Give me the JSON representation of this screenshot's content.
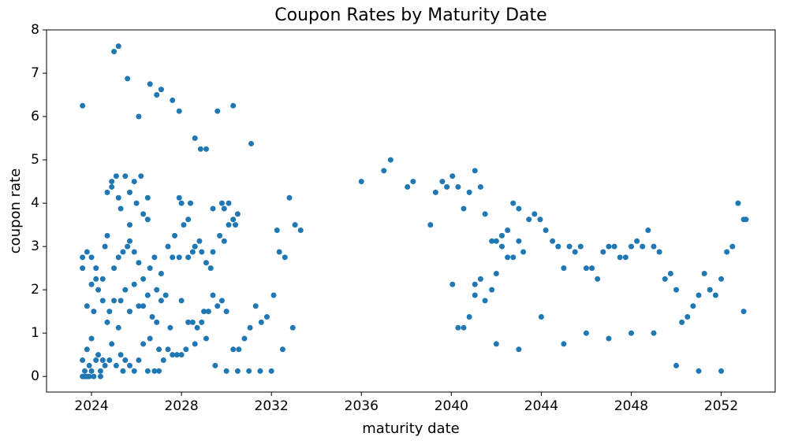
{
  "chart_data": {
    "type": "scatter",
    "title": "Coupon Rates by Maturity Date",
    "x_label": "maturity date",
    "y_label": "coupon rate",
    "color": "#1f77b4",
    "xlim": [
      2022.0,
      2054.4
    ],
    "ylim": [
      -0.36,
      8
    ],
    "xticks": [
      2024,
      2028,
      2032,
      2036,
      2040,
      2044,
      2048,
      2052
    ],
    "yticks": [
      0,
      1,
      2,
      3,
      4,
      5,
      6,
      7,
      8
    ],
    "x": [
      2036.0,
      2037.0,
      2037.3,
      2038.05,
      2038.3,
      2039.07,
      2039.3,
      2039.6,
      2039.8,
      2040.05,
      2040.05,
      2040.3,
      2040.3,
      2040.55,
      2040.55,
      2040.8,
      2040.8,
      2041.05,
      2041.05,
      2041.05,
      2041.3,
      2041.3,
      2041.5,
      2041.5,
      2041.8,
      2041.8,
      2042.0,
      2042.0,
      2042.0,
      2042.25,
      2042.25,
      2042.5,
      2042.5,
      2042.75,
      2042.75,
      2043.0,
      2043.0,
      2043.0,
      2043.2,
      2043.45,
      2043.7,
      2043.95,
      2044.0,
      2044.2,
      2044.5,
      2044.75,
      2045.0,
      2045.0,
      2045.25,
      2045.5,
      2045.75,
      2046.0,
      2046.0,
      2046.25,
      2046.5,
      2046.75,
      2047.0,
      2047.0,
      2047.25,
      2047.5,
      2047.75,
      2048.0,
      2048.0,
      2048.25,
      2048.5,
      2048.75,
      2049.0,
      2049.0,
      2049.25,
      2049.5,
      2049.75,
      2050.0,
      2050.0,
      2050.25,
      2050.5,
      2050.75,
      2051.0,
      2051.0,
      2051.25,
      2051.5,
      2051.75,
      2052.0,
      2052.0,
      2052.25,
      2052.5,
      2052.75,
      2053.0,
      2053.1,
      2053.0,
      2028.6,
      2028.85,
      2029.1,
      2029.6,
      2030.3,
      2031.1,
      2032.8,
      2033.05,
      2033.3,
      2032.25,
      2032.35,
      2032.6,
      2032.1,
      2031.8,
      2031.55,
      2031.3,
      2031.05,
      2030.8,
      2030.55,
      2030.3,
      2032.95,
      2032.5,
      2032.0,
      2031.5,
      2031.0,
      2030.5,
      2030.0,
      2029.5,
      2030.0,
      2029.8,
      2029.6,
      2029.8,
      2029.9,
      2030.1,
      2030.3,
      2030.5,
      2030.1,
      2029.4,
      2029.7,
      2029.9,
      2030.4,
      2028.3,
      2028.1,
      2028.0,
      2027.9,
      2028.4,
      2028.6,
      2028.8,
      2029.3,
      2029.4,
      2029.1,
      2028.9,
      2028.5,
      2028.3,
      2027.9,
      2027.6,
      2028.0,
      2028.3,
      2028.5,
      2028.7,
      2028.9,
      2029.0,
      2029.2,
      2029.4,
      2029.1,
      2028.6,
      2028.2,
      2028.0,
      2027.8,
      2027.6,
      2027.4,
      2027.2,
      2027.0,
      2023.6,
      2025.0,
      2025.2,
      2025.6,
      2026.1,
      2026.6,
      2026.9,
      2027.1,
      2027.6,
      2027.9,
      2024.7,
      2024.9,
      2025.1,
      2025.3,
      2025.5,
      2025.7,
      2025.9,
      2026.2,
      2026.3,
      2026.5,
      2026.0,
      2025.2,
      2024.9,
      2023.6,
      2023.6,
      2023.8,
      2024.0,
      2024.2,
      2024.5,
      2024.6,
      2024.7,
      2025.0,
      2025.2,
      2025.4,
      2025.6,
      2025.7,
      2025.9,
      2026.1,
      2026.3,
      2026.6,
      2026.8,
      2027.1,
      2027.4,
      2027.7,
      2025.7,
      2026.5,
      2026.9,
      2023.8,
      2024.0,
      2024.2,
      2024.3,
      2024.5,
      2024.7,
      2024.8,
      2025.0,
      2025.2,
      2025.3,
      2025.5,
      2025.7,
      2025.9,
      2026.1,
      2026.3,
      2026.5,
      2026.7,
      2026.9,
      2027.1,
      2027.3,
      2027.5,
      2024.1,
      2023.6,
      2023.7,
      2023.8,
      2023.9,
      2024.0,
      2024.1,
      2024.2,
      2024.3,
      2024.4,
      2024.5,
      2024.6,
      2024.8,
      2023.6,
      2023.7,
      2023.9,
      2024.0,
      2024.4,
      2024.9,
      2025.1,
      2025.3,
      2025.5,
      2025.7,
      2025.9,
      2026.1,
      2026.3,
      2026.5,
      2026.6,
      2026.8,
      2027.0,
      2025.4,
      2023.8
    ],
    "values": [
      4.5,
      4.75,
      5.0,
      4.375,
      4.5,
      3.5,
      4.25,
      4.5,
      4.375,
      4.625,
      2.125,
      4.375,
      1.125,
      1.125,
      3.875,
      4.25,
      1.375,
      4.75,
      2.125,
      1.875,
      2.25,
      4.375,
      3.75,
      1.75,
      3.125,
      2.0,
      3.125,
      2.375,
      0.75,
      3.25,
      3.0,
      3.375,
      2.75,
      4.0,
      2.75,
      3.875,
      3.125,
      0.625,
      2.875,
      3.625,
      3.75,
      3.625,
      1.375,
      3.375,
      3.125,
      3.0,
      2.5,
      0.75,
      3.0,
      2.875,
      3.0,
      2.5,
      1.0,
      2.5,
      2.25,
      2.875,
      3.0,
      0.875,
      3.0,
      2.75,
      2.75,
      3.0,
      1.0,
      3.125,
      3.0,
      3.375,
      3.0,
      1.0,
      2.875,
      2.25,
      2.375,
      2.0,
      0.25,
      1.25,
      1.375,
      1.625,
      1.875,
      0.125,
      2.375,
      2.0,
      1.875,
      2.25,
      0.125,
      2.875,
      3.0,
      4.0,
      3.625,
      3.625,
      1.5,
      5.5,
      5.25,
      5.25,
      6.125,
      6.25,
      5.375,
      4.125,
      3.5,
      3.375,
      3.375,
      2.875,
      2.75,
      1.875,
      1.375,
      1.25,
      1.625,
      1.125,
      0.875,
      0.625,
      0.625,
      1.125,
      0.625,
      0.125,
      0.125,
      0.125,
      0.125,
      0.125,
      0.25,
      1.5,
      1.75,
      1.625,
      4.0,
      3.875,
      4.0,
      3.625,
      3.75,
      3.5,
      3.875,
      3.25,
      3.125,
      3.5,
      3.625,
      3.5,
      4.0,
      4.125,
      4.0,
      3.0,
      3.125,
      2.5,
      2.875,
      2.625,
      2.875,
      2.875,
      2.75,
      2.75,
      2.75,
      1.75,
      1.25,
      1.25,
      1.125,
      1.25,
      1.5,
      1.5,
      1.875,
      0.875,
      0.75,
      0.625,
      0.5,
      0.5,
      0.5,
      0.625,
      0.375,
      0.125,
      6.25,
      7.5,
      7.625,
      6.875,
      6.0,
      6.75,
      6.5,
      6.625,
      6.375,
      6.125,
      4.25,
      4.5,
      4.625,
      3.875,
      4.625,
      4.25,
      4.5,
      4.625,
      3.75,
      4.125,
      4.0,
      4.125,
      4.375,
      2.75,
      2.5,
      2.875,
      2.75,
      2.5,
      2.25,
      3.0,
      3.25,
      2.5,
      2.75,
      2.875,
      3.0,
      3.125,
      2.875,
      2.625,
      2.25,
      2.5,
      2.75,
      2.375,
      3.0,
      3.25,
      3.5,
      3.625,
      2.0,
      1.625,
      2.125,
      2.25,
      2.0,
      1.75,
      1.25,
      1.5,
      1.75,
      1.125,
      1.75,
      2.0,
      1.5,
      2.125,
      1.625,
      1.625,
      1.875,
      1.375,
      1.25,
      1.75,
      1.875,
      1.125,
      1.5,
      0.375,
      0.125,
      0.0,
      0.25,
      0.125,
      0.0,
      0.375,
      0.5,
      0.125,
      0.375,
      0.25,
      0.375,
      0.0,
      0.0,
      0.0,
      0.875,
      0.0,
      0.75,
      0.25,
      0.5,
      0.375,
      0.25,
      0.125,
      0.375,
      0.75,
      0.125,
      0.875,
      0.125,
      0.625,
      0.125,
      0.625
    ]
  }
}
